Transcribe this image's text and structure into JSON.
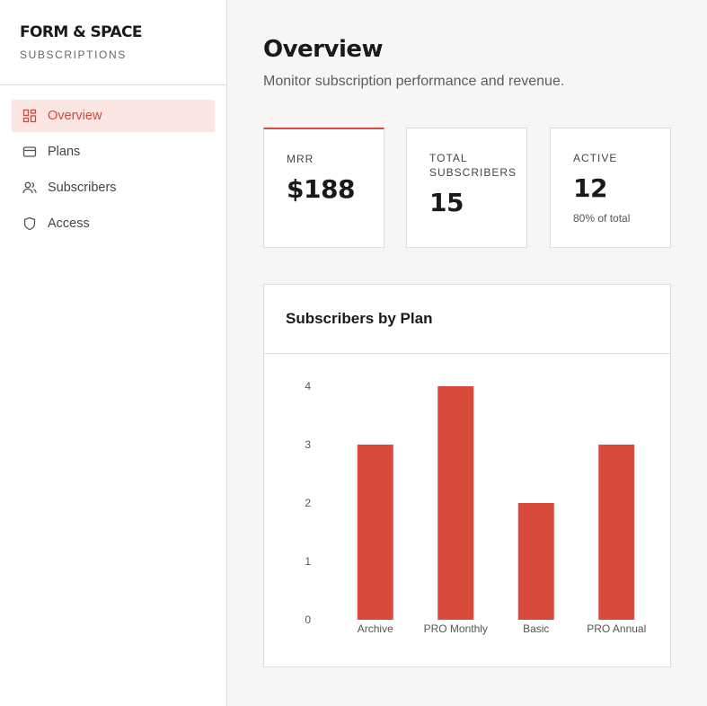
{
  "brand": {
    "name": "FORM & SPACE",
    "subtitle": "SUBSCRIPTIONS"
  },
  "nav": [
    {
      "label": "Overview",
      "icon": "dashboard-icon",
      "active": true
    },
    {
      "label": "Plans",
      "icon": "card-icon",
      "active": false
    },
    {
      "label": "Subscribers",
      "icon": "users-icon",
      "active": false
    },
    {
      "label": "Access",
      "icon": "shield-icon",
      "active": false
    }
  ],
  "header": {
    "title": "Overview",
    "subtitle": "Monitor subscription performance and revenue."
  },
  "stats": [
    {
      "label": "MRR",
      "value": "$188",
      "note": ""
    },
    {
      "label": "TOTAL SUBSCRIBERS",
      "value": "15",
      "note": ""
    },
    {
      "label": "ACTIVE",
      "value": "12",
      "note": "80% of total"
    }
  ],
  "colors": {
    "accent": "#d94a3c",
    "active_bg": "#fbe6e4",
    "page_bg": "#f7f6f4"
  },
  "chart_data": {
    "type": "bar",
    "title": "Subscribers by Plan",
    "categories": [
      "Archive",
      "PRO Monthly",
      "Basic",
      "PRO Annual"
    ],
    "values": [
      3,
      4,
      2,
      3
    ],
    "ylim": [
      0,
      4
    ],
    "yticks": [
      "0",
      "1",
      "2",
      "3",
      "4"
    ],
    "xlabel": "",
    "ylabel": "",
    "grid": false,
    "color": "#d94a3c"
  }
}
